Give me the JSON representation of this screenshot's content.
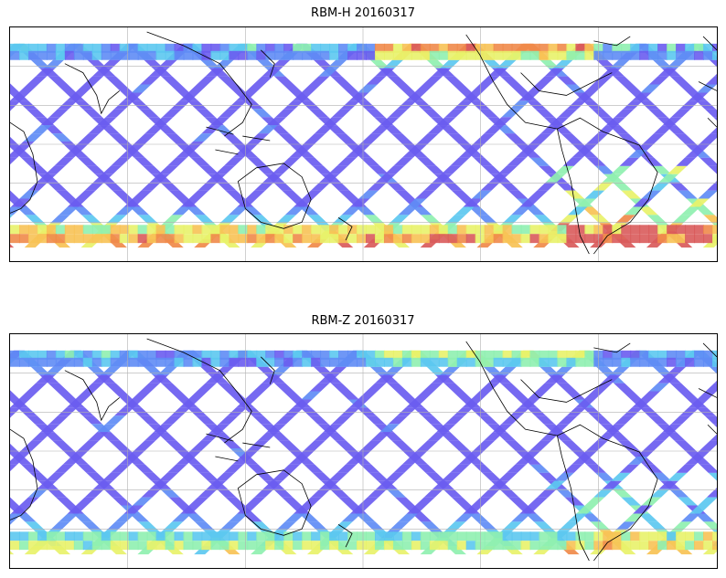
{
  "panels": [
    {
      "title": "RBM-H 20160317",
      "variant": "H"
    },
    {
      "title": "RBM-Z 20160317",
      "variant": "Z"
    }
  ],
  "colormap": [
    "#6a5cf0",
    "#5f8cf5",
    "#5cc8f0",
    "#8ff0b0",
    "#e8f26a",
    "#f7c255",
    "#f08a4a",
    "#d95b5b"
  ],
  "gridline_color": "#b0b0b0",
  "coastline_color": "#000000"
}
